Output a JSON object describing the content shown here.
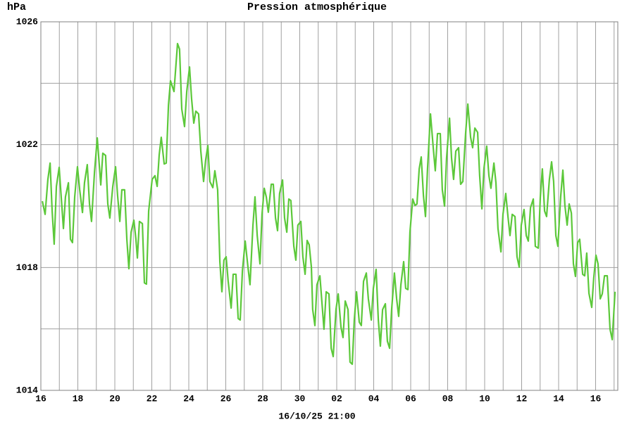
{
  "chart_data": {
    "type": "line",
    "title": "Pression atmosphérique",
    "ylabel": "hPa",
    "xlabel": "16/10/25 21:00",
    "color": "#5cc83a",
    "grid": true,
    "xlim": [
      0,
      31.2
    ],
    "ylim": [
      1014,
      1026
    ],
    "yticks": [
      1014,
      1018,
      1022,
      1026
    ],
    "y_minor_ticks": [
      1016,
      1020,
      1024
    ],
    "xticks": [
      {
        "value": 0,
        "label": "16"
      },
      {
        "value": 2,
        "label": "18"
      },
      {
        "value": 4,
        "label": "20"
      },
      {
        "value": 6,
        "label": "22"
      },
      {
        "value": 8,
        "label": "24"
      },
      {
        "value": 10,
        "label": "26"
      },
      {
        "value": 12,
        "label": "28"
      },
      {
        "value": 14,
        "label": "30"
      },
      {
        "value": 16,
        "label": "02"
      },
      {
        "value": 18,
        "label": "04"
      },
      {
        "value": 20,
        "label": "06"
      },
      {
        "value": 22,
        "label": "08"
      },
      {
        "value": 24,
        "label": "10"
      },
      {
        "value": 26,
        "label": "12"
      },
      {
        "value": 28,
        "label": "14"
      },
      {
        "value": 30,
        "label": "16"
      }
    ],
    "x_minor_ticks": [
      1,
      3,
      5,
      7,
      9,
      11,
      13,
      15,
      17,
      19,
      21,
      23,
      25,
      27,
      29,
      31
    ],
    "x": [
      0.08,
      0.23,
      0.38,
      0.5,
      0.61,
      0.72,
      0.84,
      0.99,
      1.1,
      1.22,
      1.33,
      1.49,
      1.6,
      1.71,
      1.83,
      1.98,
      2.1,
      2.25,
      2.36,
      2.51,
      2.63,
      2.74,
      2.9,
      3.05,
      3.24,
      3.35,
      3.5,
      3.62,
      3.73,
      3.89,
      4.04,
      4.15,
      4.27,
      4.38,
      4.53,
      4.65,
      4.76,
      4.88,
      5.03,
      5.14,
      5.22,
      5.33,
      5.49,
      5.6,
      5.71,
      5.83,
      6.02,
      6.17,
      6.29,
      6.4,
      6.51,
      6.67,
      6.78,
      6.9,
      7.01,
      7.2,
      7.39,
      7.5,
      7.62,
      7.77,
      7.89,
      8.04,
      8.15,
      8.27,
      8.38,
      8.53,
      8.65,
      8.8,
      8.91,
      9.03,
      9.14,
      9.3,
      9.41,
      9.56,
      9.68,
      9.79,
      9.9,
      10.02,
      10.13,
      10.29,
      10.4,
      10.55,
      10.67,
      10.78,
      10.9,
      11.05,
      11.2,
      11.31,
      11.47,
      11.58,
      11.7,
      11.85,
      11.96,
      12.08,
      12.19,
      12.3,
      12.46,
      12.57,
      12.69,
      12.8,
      12.91,
      13.07,
      13.18,
      13.3,
      13.41,
      13.52,
      13.68,
      13.79,
      13.9,
      14.06,
      14.17,
      14.29,
      14.4,
      14.51,
      14.63,
      14.7,
      14.82,
      14.93,
      15.09,
      15.2,
      15.31,
      15.43,
      15.58,
      15.7,
      15.81,
      15.96,
      16.08,
      16.23,
      16.34,
      16.46,
      16.61,
      16.72,
      16.84,
      16.95,
      17.07,
      17.22,
      17.33,
      17.45,
      17.6,
      17.71,
      17.87,
      17.98,
      18.13,
      18.25,
      18.36,
      18.48,
      18.63,
      18.74,
      18.86,
      18.97,
      19.12,
      19.24,
      19.35,
      19.47,
      19.62,
      19.73,
      19.85,
      19.96,
      20.11,
      20.23,
      20.34,
      20.46,
      20.57,
      20.69,
      20.8,
      20.91,
      21.07,
      21.22,
      21.33,
      21.45,
      21.6,
      21.71,
      21.83,
      21.94,
      22.1,
      22.21,
      22.32,
      22.44,
      22.59,
      22.7,
      22.82,
      22.97,
      23.09,
      23.24,
      23.35,
      23.47,
      23.62,
      23.73,
      23.85,
      23.96,
      24.11,
      24.23,
      24.34,
      24.5,
      24.61,
      24.72,
      24.88,
      24.99,
      25.14,
      25.26,
      25.37,
      25.49,
      25.64,
      25.75,
      25.87,
      25.98,
      26.13,
      26.25,
      26.36,
      26.48,
      26.63,
      26.74,
      26.9,
      27.01,
      27.12,
      27.24,
      27.35,
      27.5,
      27.62,
      27.73,
      27.85,
      27.96,
      28.11,
      28.23,
      28.34,
      28.46,
      28.57,
      28.69,
      28.8,
      28.91,
      29.03,
      29.14,
      29.3,
      29.41,
      29.52,
      29.64,
      29.79,
      29.9,
      30.02,
      30.13,
      30.25,
      30.36,
      30.48,
      30.63,
      30.78,
      30.9,
      31.05
    ],
    "values": [
      1020.16,
      1019.73,
      1020.87,
      1021.4,
      1019.84,
      1018.76,
      1020.64,
      1021.26,
      1020.3,
      1019.27,
      1020.3,
      1020.76,
      1018.92,
      1018.81,
      1020.3,
      1021.28,
      1020.53,
      1019.79,
      1020.76,
      1021.35,
      1020.07,
      1019.5,
      1021.1,
      1022.22,
      1020.69,
      1021.72,
      1021.65,
      1020.07,
      1019.61,
      1020.64,
      1021.28,
      1020.34,
      1019.5,
      1020.53,
      1020.53,
      1018.92,
      1017.96,
      1019.15,
      1019.54,
      1018.92,
      1018.31,
      1019.5,
      1019.43,
      1017.5,
      1017.46,
      1019.84,
      1020.87,
      1020.99,
      1020.64,
      1021.67,
      1022.24,
      1021.37,
      1021.4,
      1023.28,
      1024.08,
      1023.73,
      1025.29,
      1025.11,
      1023.16,
      1022.59,
      1023.73,
      1024.53,
      1023.5,
      1022.7,
      1023.09,
      1023.0,
      1021.79,
      1020.8,
      1021.49,
      1021.97,
      1020.8,
      1020.6,
      1021.15,
      1020.53,
      1018.19,
      1017.21,
      1018.24,
      1018.35,
      1017.55,
      1016.68,
      1017.78,
      1017.78,
      1016.34,
      1016.29,
      1017.89,
      1018.86,
      1018.01,
      1017.44,
      1019.38,
      1020.3,
      1019.04,
      1018.12,
      1019.73,
      1020.58,
      1020.3,
      1019.8,
      1020.71,
      1020.71,
      1019.61,
      1019.2,
      1020.41,
      1020.85,
      1019.61,
      1019.15,
      1020.23,
      1020.18,
      1018.69,
      1018.24,
      1019.38,
      1019.5,
      1018.35,
      1017.78,
      1018.88,
      1018.74,
      1018.01,
      1016.63,
      1016.11,
      1017.44,
      1017.73,
      1016.86,
      1015.99,
      1017.21,
      1017.14,
      1015.37,
      1015.1,
      1016.63,
      1017.14,
      1016.06,
      1015.72,
      1016.91,
      1016.63,
      1014.92,
      1014.85,
      1016.29,
      1017.21,
      1016.22,
      1016.11,
      1017.55,
      1017.82,
      1016.98,
      1016.29,
      1017.32,
      1017.94,
      1016.29,
      1015.44,
      1016.63,
      1016.82,
      1015.6,
      1015.37,
      1016.63,
      1017.82,
      1016.98,
      1016.41,
      1017.44,
      1018.19,
      1017.32,
      1017.28,
      1019.15,
      1020.23,
      1020.02,
      1020.07,
      1021.21,
      1021.6,
      1020.34,
      1019.66,
      1021.21,
      1023.0,
      1021.9,
      1021.15,
      1022.36,
      1022.36,
      1020.53,
      1020.0,
      1021.56,
      1022.86,
      1021.56,
      1020.87,
      1021.79,
      1021.9,
      1020.71,
      1020.8,
      1022.36,
      1023.32,
      1022.24,
      1021.9,
      1022.54,
      1022.4,
      1020.99,
      1019.91,
      1021.21,
      1021.95,
      1020.99,
      1020.58,
      1021.4,
      1020.76,
      1019.27,
      1018.51,
      1019.73,
      1020.41,
      1019.66,
      1019.04,
      1019.73,
      1019.66,
      1018.35,
      1018.01,
      1019.38,
      1019.89,
      1019.04,
      1018.86,
      1019.95,
      1020.23,
      1018.69,
      1018.63,
      1020.3,
      1021.21,
      1019.84,
      1019.66,
      1020.87,
      1021.44,
      1020.8,
      1019.04,
      1018.69,
      1020.3,
      1021.17,
      1020.02,
      1019.38,
      1020.07,
      1019.77,
      1018.12,
      1017.71,
      1018.81,
      1018.92,
      1017.78,
      1017.73,
      1018.47,
      1017.16,
      1016.7,
      1017.66,
      1018.4,
      1018.12,
      1016.98,
      1017.14,
      1017.73,
      1017.73,
      1015.99,
      1015.65,
      1017.21
    ]
  }
}
